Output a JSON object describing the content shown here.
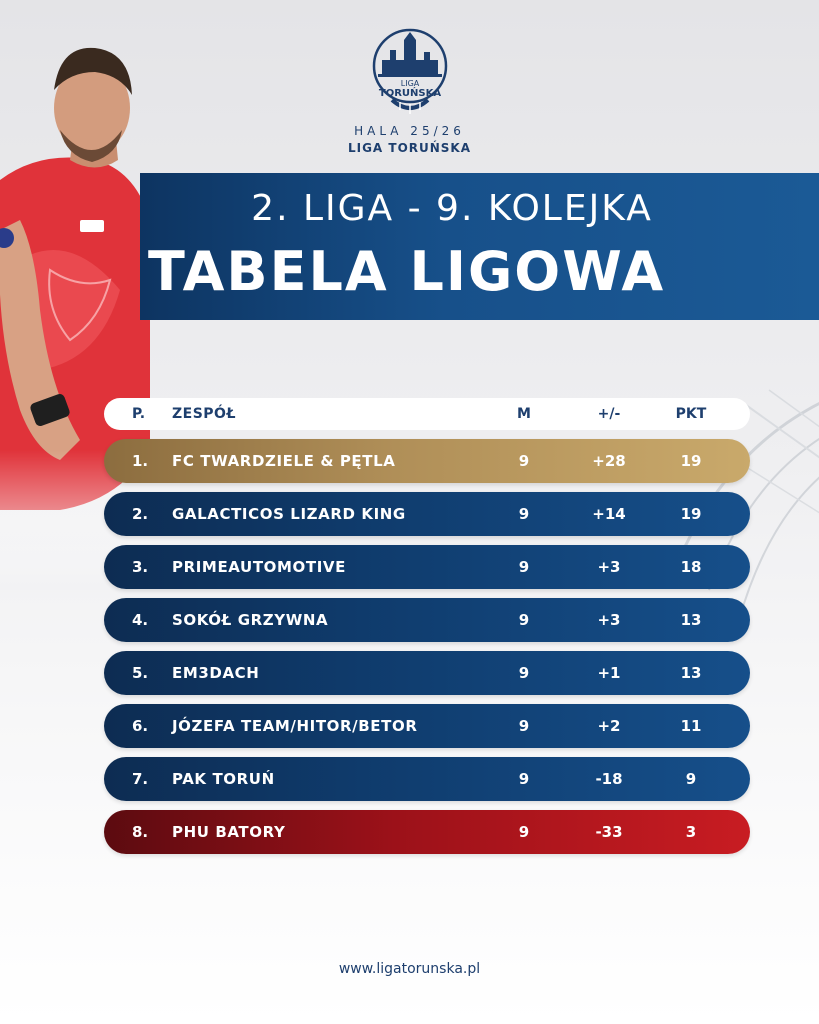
{
  "logo": {
    "line1": "LIGA",
    "line2": "TORUŃSKA"
  },
  "season": {
    "title": "HALA 25/26",
    "subtitle": "LIGA TORUŃSKA"
  },
  "banner": {
    "round": "2. LIGA - 9. KOLEJKA",
    "title": "TABELA LIGOWA"
  },
  "table": {
    "headers": {
      "pos": "P.",
      "team": "ZESPÓŁ",
      "m": "M",
      "diff": "+/-",
      "pkt": "PKT"
    },
    "rows": [
      {
        "pos": "1.",
        "team": "FC TWARDZIELE & PĘTLA",
        "m": "9",
        "diff": "+28",
        "pkt": "19",
        "style": "gold"
      },
      {
        "pos": "2.",
        "team": "GALACTICOS LIZARD KING",
        "m": "9",
        "diff": "+14",
        "pkt": "19",
        "style": "blue"
      },
      {
        "pos": "3.",
        "team": "PRIMEAUTOMOTIVE",
        "m": "9",
        "diff": "+3",
        "pkt": "18",
        "style": "blue"
      },
      {
        "pos": "4.",
        "team": "SOKÓŁ GRZYWNA",
        "m": "9",
        "diff": "+3",
        "pkt": "13",
        "style": "blue"
      },
      {
        "pos": "5.",
        "team": "EM3DACH",
        "m": "9",
        "diff": "+1",
        "pkt": "13",
        "style": "blue"
      },
      {
        "pos": "6.",
        "team": "JÓZEFA TEAM/HITOR/BETOR",
        "m": "9",
        "diff": "+2",
        "pkt": "11",
        "style": "blue"
      },
      {
        "pos": "7.",
        "team": "PAK TORUŃ",
        "m": "9",
        "diff": "-18",
        "pkt": "9",
        "style": "blue"
      },
      {
        "pos": "8.",
        "team": "PHU BATORY",
        "m": "9",
        "diff": "-33",
        "pkt": "3",
        "style": "red"
      }
    ]
  },
  "footer": {
    "url": "www.ligatorunska.pl"
  },
  "colors": {
    "navy": "#1e3f6e",
    "gold": "#b08f58",
    "red": "#9c1119",
    "banner": "#17508a"
  }
}
